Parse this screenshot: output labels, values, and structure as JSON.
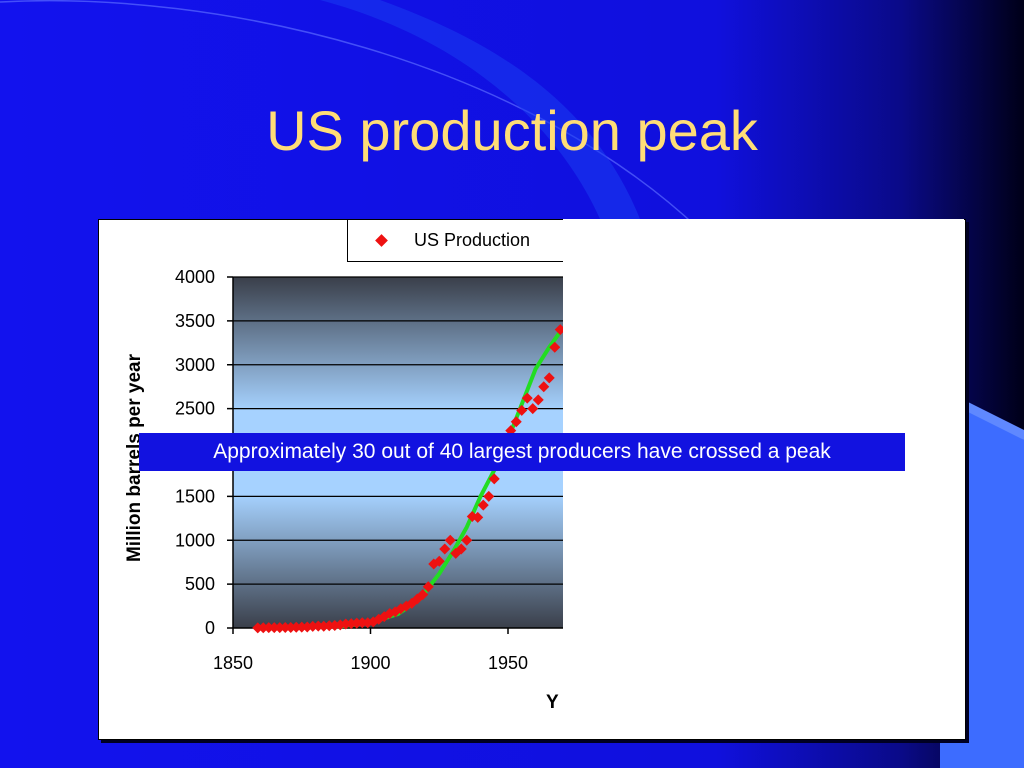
{
  "slide": {
    "title": "US production peak",
    "callout": "Approximately 30 out of 40 largest producers have crossed a peak",
    "colors": {
      "background": "#1010e6",
      "title": "#ffdd77",
      "callout_bg": "#1212e0",
      "data_points": "#ee1111",
      "fit_line": "#22dd22"
    }
  },
  "chart_data": {
    "type": "scatter",
    "xlabel": "Y",
    "ylabel": "Million barrels per year",
    "xlim": [
      1850,
      1970
    ],
    "ylim": [
      0,
      4000
    ],
    "x_ticks": [
      1850,
      1900,
      1950
    ],
    "y_ticks": [
      0,
      500,
      1000,
      1500,
      2000,
      2500,
      3000,
      3500,
      4000
    ],
    "grid": true,
    "legend_position": "top",
    "series": [
      {
        "name": "US Production",
        "kind": "points",
        "x": [
          1859,
          1861,
          1863,
          1865,
          1867,
          1869,
          1871,
          1873,
          1875,
          1877,
          1879,
          1881,
          1883,
          1885,
          1887,
          1889,
          1891,
          1893,
          1895,
          1897,
          1899,
          1901,
          1903,
          1905,
          1907,
          1909,
          1911,
          1913,
          1915,
          1917,
          1919,
          1921,
          1923,
          1925,
          1927,
          1929,
          1931,
          1933,
          1935,
          1937,
          1939,
          1941,
          1943,
          1945,
          1947,
          1949,
          1951,
          1953,
          1955,
          1957,
          1959,
          1961,
          1963,
          1965,
          1967,
          1969
        ],
        "y": [
          2,
          3,
          4,
          4,
          4,
          5,
          5,
          8,
          10,
          12,
          18,
          22,
          20,
          25,
          28,
          35,
          45,
          50,
          55,
          60,
          60,
          70,
          100,
          130,
          165,
          185,
          220,
          250,
          280,
          330,
          380,
          470,
          730,
          760,
          900,
          1000,
          850,
          900,
          1000,
          1270,
          1260,
          1400,
          1500,
          1700,
          1850,
          1850,
          2250,
          2350,
          2480,
          2620,
          2500,
          2600,
          2750,
          2850,
          3200,
          3400
        ]
      },
      {
        "kind": "fit-curve",
        "x": [
          1859,
          1890,
          1900,
          1910,
          1918,
          1925,
          1930,
          1935,
          1940,
          1945,
          1950,
          1955,
          1960,
          1965,
          1970
        ],
        "y": [
          0,
          20,
          60,
          160,
          330,
          620,
          870,
          1150,
          1500,
          1800,
          2150,
          2550,
          2950,
          3200,
          3420
        ]
      }
    ]
  }
}
